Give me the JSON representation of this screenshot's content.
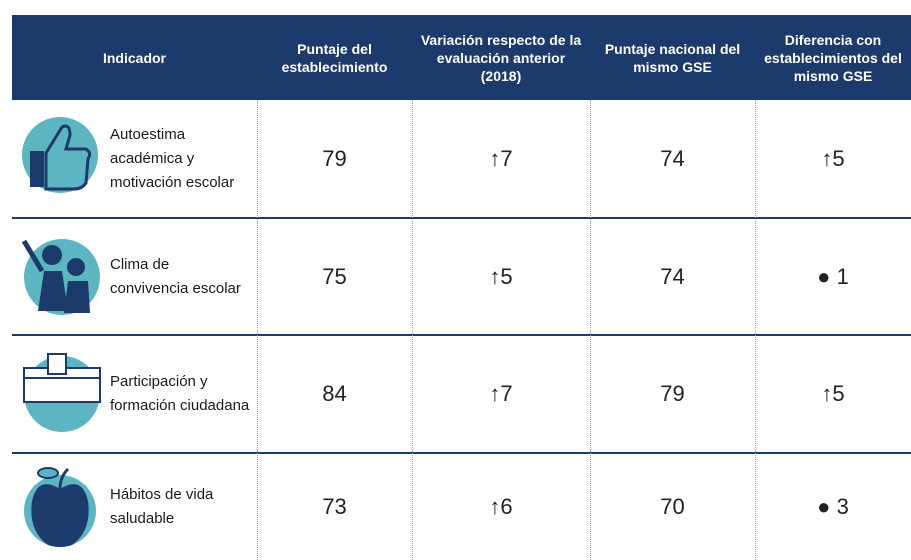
{
  "table": {
    "header": [
      "Indicador",
      "Puntaje del establecimiento",
      "Variación respecto de la evaluación anterior (2018)",
      "Puntaje nacional del mismo GSE",
      "Diferencia con establecimientos del mismo GSE"
    ],
    "rows": [
      [
        "Autoestima académica y motivación escolar",
        79,
        "↑7",
        74,
        "↑5"
      ],
      [
        "Clima de convivencia escolar",
        75,
        "↑5",
        74,
        "● 1"
      ],
      [
        "Participación y formación ciudadana",
        84,
        "↑7",
        79,
        "↑5"
      ],
      [
        "Hábitos de vida saludable",
        73,
        "↑6",
        70,
        "● 3"
      ]
    ]
  }
}
